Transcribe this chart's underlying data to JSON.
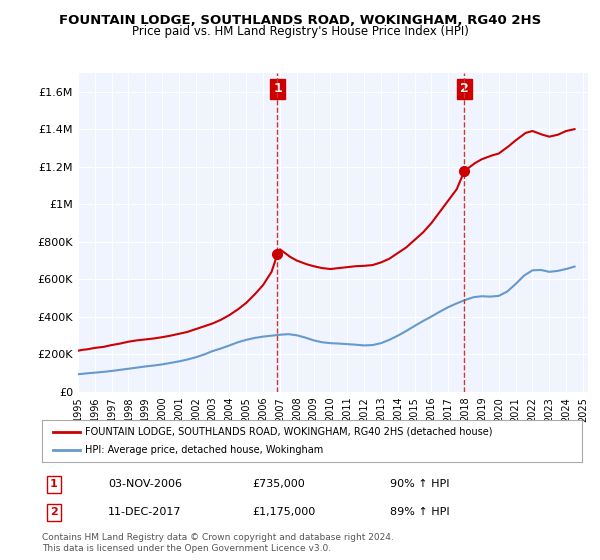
{
  "title": "FOUNTAIN LODGE, SOUTHLANDS ROAD, WOKINGHAM, RG40 2HS",
  "subtitle": "Price paid vs. HM Land Registry's House Price Index (HPI)",
  "ylim": [
    0,
    1700000
  ],
  "yticks": [
    0,
    200000,
    400000,
    600000,
    800000,
    1000000,
    1200000,
    1400000,
    1600000
  ],
  "ytick_labels": [
    "£0",
    "£200K",
    "£400K",
    "£600K",
    "£800K",
    "£1M",
    "£1.2M",
    "£1.4M",
    "£1.6M"
  ],
  "xlabel_years": [
    "1995",
    "1996",
    "1997",
    "1998",
    "1999",
    "2000",
    "2001",
    "2002",
    "2003",
    "2004",
    "2005",
    "2006",
    "2007",
    "2008",
    "2009",
    "2010",
    "2011",
    "2012",
    "2013",
    "2014",
    "2015",
    "2016",
    "2017",
    "2018",
    "2019",
    "2020",
    "2021",
    "2022",
    "2023",
    "2024",
    "2025"
  ],
  "red_line_color": "#cc0000",
  "blue_line_color": "#6699cc",
  "marker_color": "#cc0000",
  "vline_color": "#cc3333",
  "annotation_box_color": "#cc0000",
  "background_color": "#f0f4ff",
  "legend_label_red": "FOUNTAIN LODGE, SOUTHLANDS ROAD, WOKINGHAM, RG40 2HS (detached house)",
  "legend_label_blue": "HPI: Average price, detached house, Wokingham",
  "sale1_label": "1",
  "sale1_date": "03-NOV-2006",
  "sale1_price": "£735,000",
  "sale1_hpi": "90% ↑ HPI",
  "sale1_year": 2006.85,
  "sale1_value": 735000,
  "sale2_label": "2",
  "sale2_date": "11-DEC-2017",
  "sale2_price": "£1,175,000",
  "sale2_hpi": "89% ↑ HPI",
  "sale2_year": 2017.95,
  "sale2_value": 1175000,
  "footer": "Contains HM Land Registry data © Crown copyright and database right 2024.\nThis data is licensed under the Open Government Licence v3.0.",
  "red_x": [
    1995.0,
    1995.3,
    1995.6,
    1996.0,
    1996.5,
    1997.0,
    1997.5,
    1998.0,
    1998.5,
    1999.0,
    1999.5,
    2000.0,
    2000.5,
    2001.0,
    2001.5,
    2002.0,
    2002.5,
    2003.0,
    2003.5,
    2004.0,
    2004.5,
    2005.0,
    2005.5,
    2006.0,
    2006.5,
    2006.85,
    2007.0,
    2007.3,
    2007.6,
    2008.0,
    2008.3,
    2008.6,
    2009.0,
    2009.5,
    2010.0,
    2010.5,
    2011.0,
    2011.5,
    2012.0,
    2012.5,
    2013.0,
    2013.5,
    2014.0,
    2014.5,
    2015.0,
    2015.5,
    2016.0,
    2016.5,
    2017.0,
    2017.5,
    2017.95,
    2018.3,
    2018.6,
    2019.0,
    2019.3,
    2019.6,
    2020.0,
    2020.3,
    2020.6,
    2021.0,
    2021.3,
    2021.6,
    2022.0,
    2022.3,
    2022.6,
    2023.0,
    2023.5,
    2024.0,
    2024.5
  ],
  "red_y": [
    220000,
    225000,
    228000,
    235000,
    240000,
    250000,
    258000,
    268000,
    275000,
    280000,
    285000,
    292000,
    300000,
    310000,
    320000,
    335000,
    350000,
    365000,
    385000,
    410000,
    440000,
    475000,
    520000,
    570000,
    640000,
    735000,
    760000,
    740000,
    720000,
    700000,
    690000,
    680000,
    670000,
    660000,
    655000,
    660000,
    665000,
    670000,
    672000,
    676000,
    690000,
    710000,
    740000,
    770000,
    810000,
    850000,
    900000,
    960000,
    1020000,
    1080000,
    1175000,
    1200000,
    1220000,
    1240000,
    1250000,
    1260000,
    1270000,
    1290000,
    1310000,
    1340000,
    1360000,
    1380000,
    1390000,
    1380000,
    1370000,
    1360000,
    1370000,
    1390000,
    1400000
  ],
  "blue_x": [
    1995.0,
    1995.3,
    1995.6,
    1996.0,
    1996.5,
    1997.0,
    1997.5,
    1998.0,
    1998.5,
    1999.0,
    1999.5,
    2000.0,
    2000.5,
    2001.0,
    2001.5,
    2002.0,
    2002.5,
    2003.0,
    2003.5,
    2004.0,
    2004.5,
    2005.0,
    2005.5,
    2006.0,
    2006.5,
    2007.0,
    2007.5,
    2008.0,
    2008.5,
    2009.0,
    2009.5,
    2010.0,
    2010.5,
    2011.0,
    2011.5,
    2012.0,
    2012.5,
    2013.0,
    2013.5,
    2014.0,
    2014.5,
    2015.0,
    2015.5,
    2016.0,
    2016.5,
    2017.0,
    2017.5,
    2018.0,
    2018.5,
    2019.0,
    2019.5,
    2020.0,
    2020.5,
    2021.0,
    2021.5,
    2022.0,
    2022.5,
    2023.0,
    2023.5,
    2024.0,
    2024.5
  ],
  "blue_y": [
    95000,
    97000,
    100000,
    103000,
    107000,
    112000,
    118000,
    124000,
    130000,
    136000,
    141000,
    147000,
    155000,
    163000,
    173000,
    185000,
    200000,
    218000,
    232000,
    248000,
    265000,
    278000,
    288000,
    295000,
    300000,
    305000,
    308000,
    302000,
    290000,
    275000,
    265000,
    260000,
    258000,
    255000,
    252000,
    248000,
    250000,
    260000,
    278000,
    300000,
    325000,
    352000,
    378000,
    402000,
    428000,
    452000,
    472000,
    490000,
    505000,
    510000,
    508000,
    512000,
    535000,
    575000,
    620000,
    648000,
    650000,
    640000,
    645000,
    655000,
    668000
  ]
}
